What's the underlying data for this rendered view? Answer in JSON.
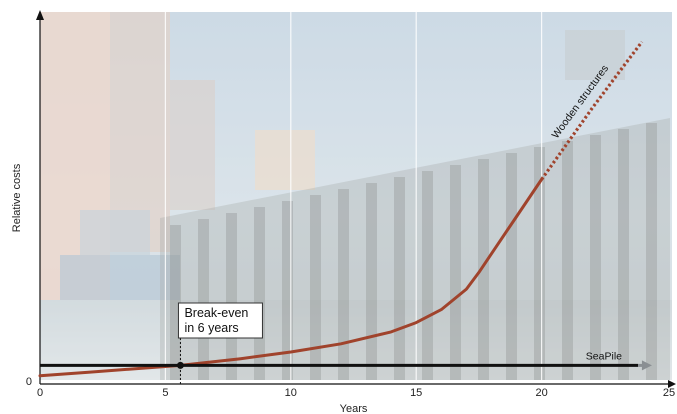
{
  "chart_data": {
    "type": "line",
    "title": "",
    "xlabel": "Years",
    "ylabel": "Relative costs",
    "xlim": [
      0,
      25
    ],
    "ylim": [
      0,
      10
    ],
    "x_ticks": [
      0,
      5,
      10,
      15,
      20,
      25
    ],
    "y_ticks": [
      0
    ],
    "grid": "vertical",
    "background": "photo of wooden pier pilings (decorative)",
    "series": [
      {
        "name": "Wooden structures",
        "color": "#a0432c",
        "style": "solid, dotted after year 20",
        "x": [
          0,
          2,
          4,
          5.6,
          8,
          10,
          12,
          14,
          15,
          16,
          17,
          17.5,
          18,
          19,
          20,
          21,
          22,
          23,
          24
        ],
        "y": [
          0.22,
          0.32,
          0.42,
          0.5,
          0.68,
          0.86,
          1.08,
          1.4,
          1.65,
          2.0,
          2.55,
          3.0,
          3.5,
          4.5,
          5.5,
          6.45,
          7.4,
          8.3,
          9.2
        ]
      },
      {
        "name": "SeaPile",
        "color": "#111111",
        "style": "solid with arrow",
        "x": [
          0,
          24.4
        ],
        "y": [
          0.5,
          0.5
        ]
      }
    ],
    "annotations": [
      {
        "text_lines": [
          "Break-even",
          "in 6 years"
        ],
        "x": 5.6,
        "y": 0.5
      }
    ]
  }
}
